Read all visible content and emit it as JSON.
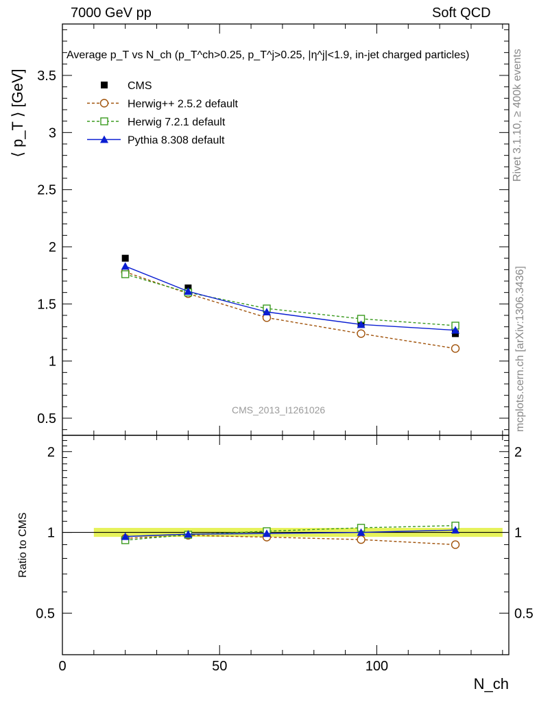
{
  "header": {
    "left": "7000 GeV pp",
    "right": "Soft QCD"
  },
  "side_labels": {
    "rivet": "Rivet 3.1.10, ≥ 400k events",
    "mcplots": "mcplots.cern.ch [arXiv:1306.3436]"
  },
  "watermark": "CMS_2013_I1261026",
  "chart_data": [
    {
      "type": "line",
      "title": "Average p_T vs N_ch (p_T^ch>0.25, p_T^j>0.25, |η^j|<1.9, in-jet charged particles)",
      "ylabel": "⟨ p_T ⟩ [GeV]",
      "xlim": [
        0,
        142
      ],
      "ylim": [
        0.35,
        3.95
      ],
      "yticks": [
        "0.5",
        "1",
        "1.5",
        "2",
        "2.5",
        "3",
        "3.5"
      ],
      "grid": false,
      "legend_position": "top-left",
      "x": [
        20,
        40,
        65,
        95,
        125
      ],
      "series": [
        {
          "name": "CMS",
          "style": "black-square-marker",
          "color": "#000000",
          "values": [
            1.9,
            1.64,
            1.45,
            1.32,
            1.24
          ]
        },
        {
          "name": "Herwig++ 2.5.2 default",
          "style": "open-circle-dashed",
          "color": "#a0520a",
          "values": [
            1.78,
            1.59,
            1.38,
            1.24,
            1.11
          ]
        },
        {
          "name": "Herwig 7.2.1 default",
          "style": "open-square-dashed",
          "color": "#3a9a1e",
          "values": [
            1.76,
            1.6,
            1.46,
            1.37,
            1.31
          ]
        },
        {
          "name": "Pythia 8.308 default",
          "style": "filled-triangle-solid",
          "color": "#0a1ed2",
          "values": [
            1.83,
            1.61,
            1.43,
            1.32,
            1.27
          ]
        }
      ]
    },
    {
      "type": "line",
      "xlabel": "N_ch",
      "ylabel": "Ratio to CMS",
      "xlim": [
        0,
        142
      ],
      "xticks": [
        "0",
        "50",
        "100"
      ],
      "yticks": [
        "0.5",
        "1",
        "2"
      ],
      "ylim": [
        0.35,
        2.3
      ],
      "band": {
        "x": [
          10,
          140
        ],
        "low": 0.985,
        "high": 1.015,
        "color": "#e6f25a"
      },
      "x": [
        20,
        40,
        65,
        95,
        125
      ],
      "series": [
        {
          "name": "Herwig++ 2.5.2 default",
          "color": "#a0520a",
          "values": [
            0.95,
            0.975,
            0.96,
            0.94,
            0.9
          ]
        },
        {
          "name": "Herwig 7.2.1 default",
          "color": "#3a9a1e",
          "values": [
            0.935,
            0.98,
            1.01,
            1.04,
            1.06
          ]
        },
        {
          "name": "Pythia 8.308 default",
          "color": "#0a1ed2",
          "values": [
            0.965,
            0.985,
            0.99,
            1.0,
            1.02
          ]
        }
      ]
    }
  ]
}
